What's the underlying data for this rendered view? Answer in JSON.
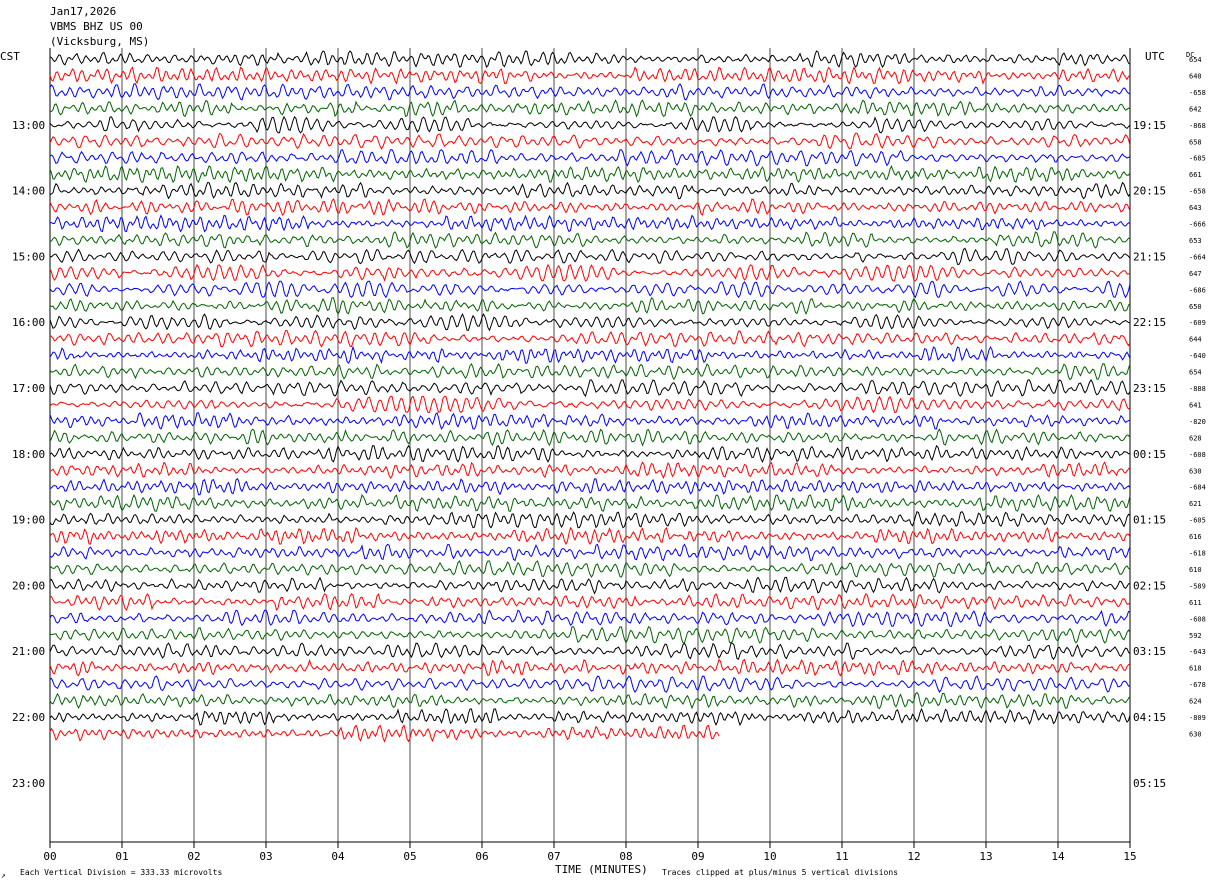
{
  "header": {
    "date": "Jan17,2026",
    "station": "VBMS BHZ US 00",
    "location": "(Vicksburg, MS)"
  },
  "left_zone": "CST",
  "right_zone": "UTC",
  "dc_label": "DC",
  "footer": {
    "scale_note": "Each Vertical Division =  333.33 microvolts",
    "xlabel": "TIME (MINUTES)",
    "clip_note": "Traces clipped at plus/minus 5 vertical divisions"
  },
  "colors": {
    "trace_cycle": [
      "#000000",
      "#ff0000",
      "#0000ff",
      "#006400"
    ],
    "grid": "#000000",
    "background": "#ffffff"
  },
  "chart_data": {
    "type": "line",
    "title": "VBMS BHZ US 00",
    "xlabel": "TIME (MINUTES)",
    "xlim": [
      0,
      15
    ],
    "x_ticks": [
      "00",
      "01",
      "02",
      "03",
      "04",
      "05",
      "06",
      "07",
      "08",
      "09",
      "10",
      "11",
      "12",
      "13",
      "14",
      "15"
    ],
    "left_hour_labels": [
      "13:00",
      "14:00",
      "15:00",
      "16:00",
      "17:00",
      "18:00",
      "19:00",
      "20:00",
      "21:00",
      "22:00",
      "23:00"
    ],
    "right_hour_labels": [
      "19:15",
      "20:15",
      "21:15",
      "22:15",
      "23:15",
      "00:15",
      "01:15",
      "02:15",
      "03:15",
      "04:15",
      "05:15"
    ],
    "rows_per_hour": 4,
    "minutes_per_row": 15,
    "dc_offsets": [
      "654",
      "640",
      "-658",
      "642",
      "-868",
      "658",
      "-685",
      "661",
      "-658",
      "643",
      "-666",
      "653",
      "-664",
      "647",
      "-686",
      "650",
      "-609",
      "644",
      "-640",
      "654",
      "-888",
      "641",
      "-820",
      "628",
      "-608",
      "630",
      "-684",
      "621",
      "-605",
      "616",
      "-618",
      "610",
      "-589",
      "611",
      "-608",
      "592",
      "-643",
      "618",
      "-678",
      "624",
      "-809",
      "630"
    ],
    "total_traces": 42,
    "last_trace_end_minute": 9.3
  }
}
